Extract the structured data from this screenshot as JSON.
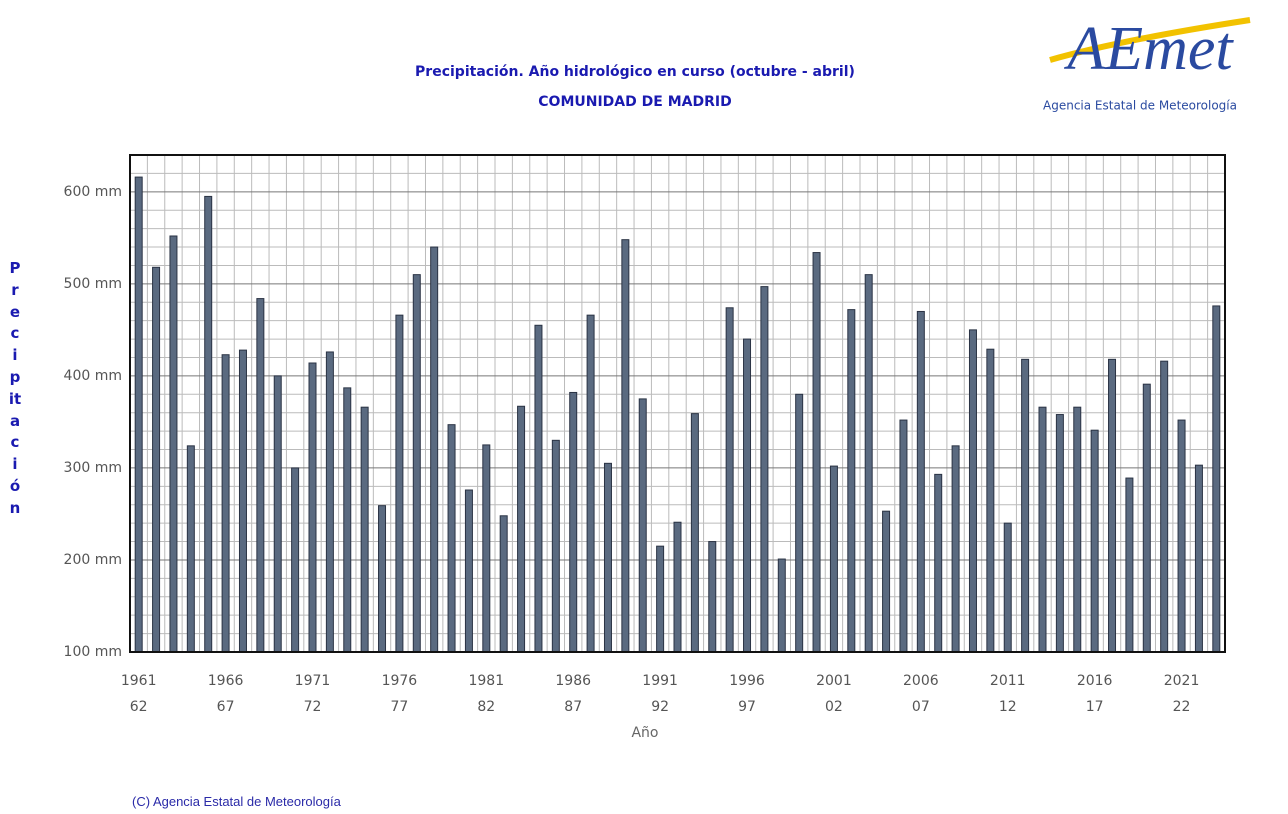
{
  "logo": {
    "name": "AEmet",
    "subtitle": "Agencia Estatal de Meteorología"
  },
  "footer": "(C) Agencia Estatal de Meteorología",
  "chart_data": {
    "type": "bar",
    "title": "Precipitación. Año hidrológico en curso (octubre - abril)",
    "subtitle": "COMUNIDAD DE MADRID",
    "xlabel": "Año",
    "ylabel": "Precipitación",
    "categories": [
      "1961",
      null,
      null,
      null,
      null,
      "1966",
      null,
      null,
      null,
      null,
      "1971",
      null,
      null,
      null,
      null,
      "1976",
      null,
      null,
      null,
      null,
      "1981",
      null,
      null,
      null,
      null,
      "1986",
      null,
      null,
      null,
      null,
      "1991",
      null,
      null,
      null,
      null,
      "1996",
      null,
      null,
      null,
      null,
      "2001",
      null,
      null,
      null,
      null,
      "2006",
      null,
      null,
      null,
      null,
      "2011",
      null,
      null,
      null,
      null,
      "2016",
      null,
      null,
      null,
      null,
      "2021",
      null,
      null
    ],
    "category_sublabels": [
      "62",
      null,
      null,
      null,
      null,
      "67",
      null,
      null,
      null,
      null,
      "72",
      null,
      null,
      null,
      null,
      "77",
      null,
      null,
      null,
      null,
      "82",
      null,
      null,
      null,
      null,
      "87",
      null,
      null,
      null,
      null,
      "92",
      null,
      null,
      null,
      null,
      "97",
      null,
      null,
      null,
      null,
      "02",
      null,
      null,
      null,
      null,
      "07",
      null,
      null,
      null,
      null,
      "12",
      null,
      null,
      null,
      null,
      "17",
      null,
      null,
      null,
      null,
      "22",
      null,
      null
    ],
    "values": [
      616,
      518,
      552,
      324,
      595,
      423,
      428,
      484,
      400,
      300,
      414,
      426,
      387,
      366,
      259,
      466,
      510,
      540,
      347,
      276,
      325,
      248,
      367,
      455,
      330,
      382,
      466,
      305,
      548,
      375,
      215,
      241,
      359,
      220,
      474,
      440,
      497,
      201,
      380,
      534,
      302,
      472,
      510,
      253,
      352,
      470,
      293,
      324,
      450,
      429,
      240,
      418,
      366,
      358,
      366,
      341,
      418,
      289,
      391,
      416,
      352,
      303,
      476
    ],
    "color": "#5a6a80",
    "ylim": [
      100,
      640
    ],
    "yticks": [
      {
        "value": 100,
        "label": "100 mm"
      },
      {
        "value": 200,
        "label": "200 mm"
      },
      {
        "value": 300,
        "label": "300 mm"
      },
      {
        "value": 400,
        "label": "400 mm"
      },
      {
        "value": 500,
        "label": "500 mm"
      },
      {
        "value": 600,
        "label": "600 mm"
      }
    ],
    "yminorticks": [
      120,
      140,
      160,
      180,
      220,
      240,
      260,
      280,
      320,
      340,
      360,
      380,
      420,
      440,
      460,
      480,
      520,
      540,
      560,
      580,
      620,
      640
    ],
    "grid": true
  }
}
